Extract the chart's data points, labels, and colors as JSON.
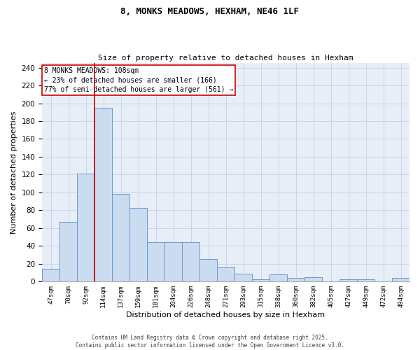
{
  "title1": "8, MONKS MEADOWS, HEXHAM, NE46 1LF",
  "title2": "Size of property relative to detached houses in Hexham",
  "xlabel": "Distribution of detached houses by size in Hexham",
  "ylabel": "Number of detached properties",
  "footnote1": "Contains HM Land Registry data © Crown copyright and database right 2025.",
  "footnote2": "Contains public sector information licensed under the Open Government Licence v3.0.",
  "bin_labels": [
    "47sqm",
    "70sqm",
    "92sqm",
    "114sqm",
    "137sqm",
    "159sqm",
    "181sqm",
    "204sqm",
    "226sqm",
    "248sqm",
    "271sqm",
    "293sqm",
    "315sqm",
    "338sqm",
    "360sqm",
    "382sqm",
    "405sqm",
    "427sqm",
    "449sqm",
    "472sqm",
    "494sqm"
  ],
  "bar_heights": [
    14,
    67,
    121,
    195,
    98,
    83,
    44,
    44,
    44,
    25,
    16,
    9,
    3,
    8,
    4,
    5,
    0,
    3,
    3,
    0,
    4
  ],
  "bar_color": "#ccdcf0",
  "bar_edge_color": "#6699cc",
  "grid_color": "#c8d4e8",
  "background_color": "#e8eef8",
  "annotation_box_text": "8 MONKS MEADOWS: 108sqm\n← 23% of detached houses are smaller (166)\n77% of semi-detached houses are larger (561) →",
  "annotation_box_edge_color": "#cc0000",
  "vline_color": "#cc0000",
  "vline_x": 2.5,
  "ylim": [
    0,
    245
  ],
  "yticks": [
    0,
    20,
    40,
    60,
    80,
    100,
    120,
    140,
    160,
    180,
    200,
    220,
    240
  ]
}
